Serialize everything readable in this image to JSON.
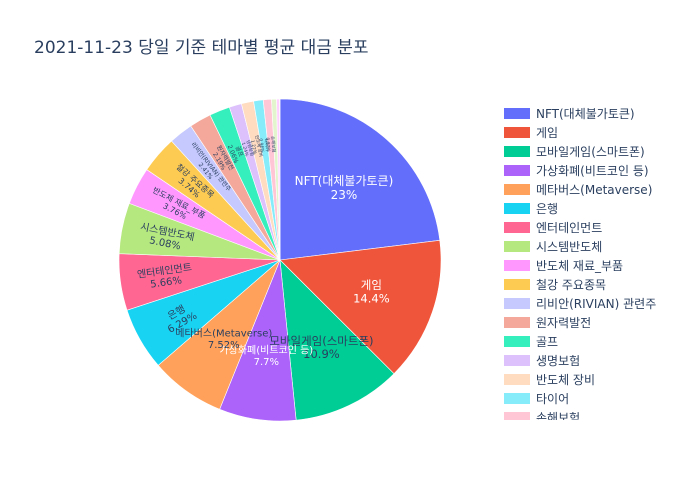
{
  "chart_data": {
    "type": "pie",
    "title": "2021-11-23 당일 기준 테마별 평균 대금 분포",
    "slices": [
      {
        "label": "NFT(대체불가토큰)",
        "percent": 23.0,
        "percent_text": "23%",
        "color": "#636efa"
      },
      {
        "label": "게임",
        "percent": 14.4,
        "percent_text": "14.4%",
        "color": "#EF553B"
      },
      {
        "label": "모바일게임(스마트폰)",
        "percent": 10.9,
        "percent_text": "10.9%",
        "color": "#00cc96"
      },
      {
        "label": "가상화폐(비트코인 등)",
        "percent": 7.7,
        "percent_text": "7.7%",
        "color": "#ab63fa"
      },
      {
        "label": "메타버스(Metaverse)",
        "percent": 7.52,
        "percent_text": "7.52%",
        "color": "#FFA15A"
      },
      {
        "label": "은행",
        "percent": 6.29,
        "percent_text": "6.29%",
        "color": "#19d3f3"
      },
      {
        "label": "엔터테인먼트",
        "percent": 5.66,
        "percent_text": "5.66%",
        "color": "#FF6692"
      },
      {
        "label": "시스템반도체",
        "percent": 5.08,
        "percent_text": "5.08%",
        "color": "#B6E880"
      },
      {
        "label": "반도체 재료_부품",
        "percent": 3.76,
        "percent_text": "3.76%",
        "color": "#FF97FF"
      },
      {
        "label": "철강 주요종목",
        "percent": 3.74,
        "percent_text": "3.74%",
        "color": "#FECB52"
      },
      {
        "label": "리비안(RIVIAN) 관련주",
        "percent": 2.41,
        "percent_text": "2.41%",
        "color": "#c5c9fd"
      },
      {
        "label": "원자력발전",
        "percent": 2.19,
        "percent_text": "2.19%",
        "color": "#f3a89b"
      },
      {
        "label": "골프",
        "percent": 2.06,
        "percent_text": "2.06%",
        "color": "#35f0bd"
      },
      {
        "label": "생명보험",
        "percent": 1.24,
        "percent_text": "1.24%",
        "color": "#dcc1fd"
      },
      {
        "label": "반도체 장비",
        "percent": 1.22,
        "percent_text": "1.22%",
        "color": "#ffdbc0"
      },
      {
        "label": "타이어",
        "percent": 0.96,
        "percent_text": "0.96%",
        "color": "#87ecfa"
      },
      {
        "label": "손해보험",
        "percent": 0.82,
        "percent_text": "0.82%",
        "color": "#ffc6d6"
      },
      {
        "label": "",
        "percent": 0.5,
        "percent_text": "0.5%",
        "color": "#e2f5cc"
      },
      {
        "label": "",
        "percent": 0.3,
        "percent_text": "0.3%",
        "color": "#ffd1ff"
      },
      {
        "label": "",
        "percent": 0.04,
        "percent_text": "0.04%",
        "color": "#fff0c8"
      }
    ],
    "legend_visible_count": 17,
    "legend_placement": "right"
  }
}
